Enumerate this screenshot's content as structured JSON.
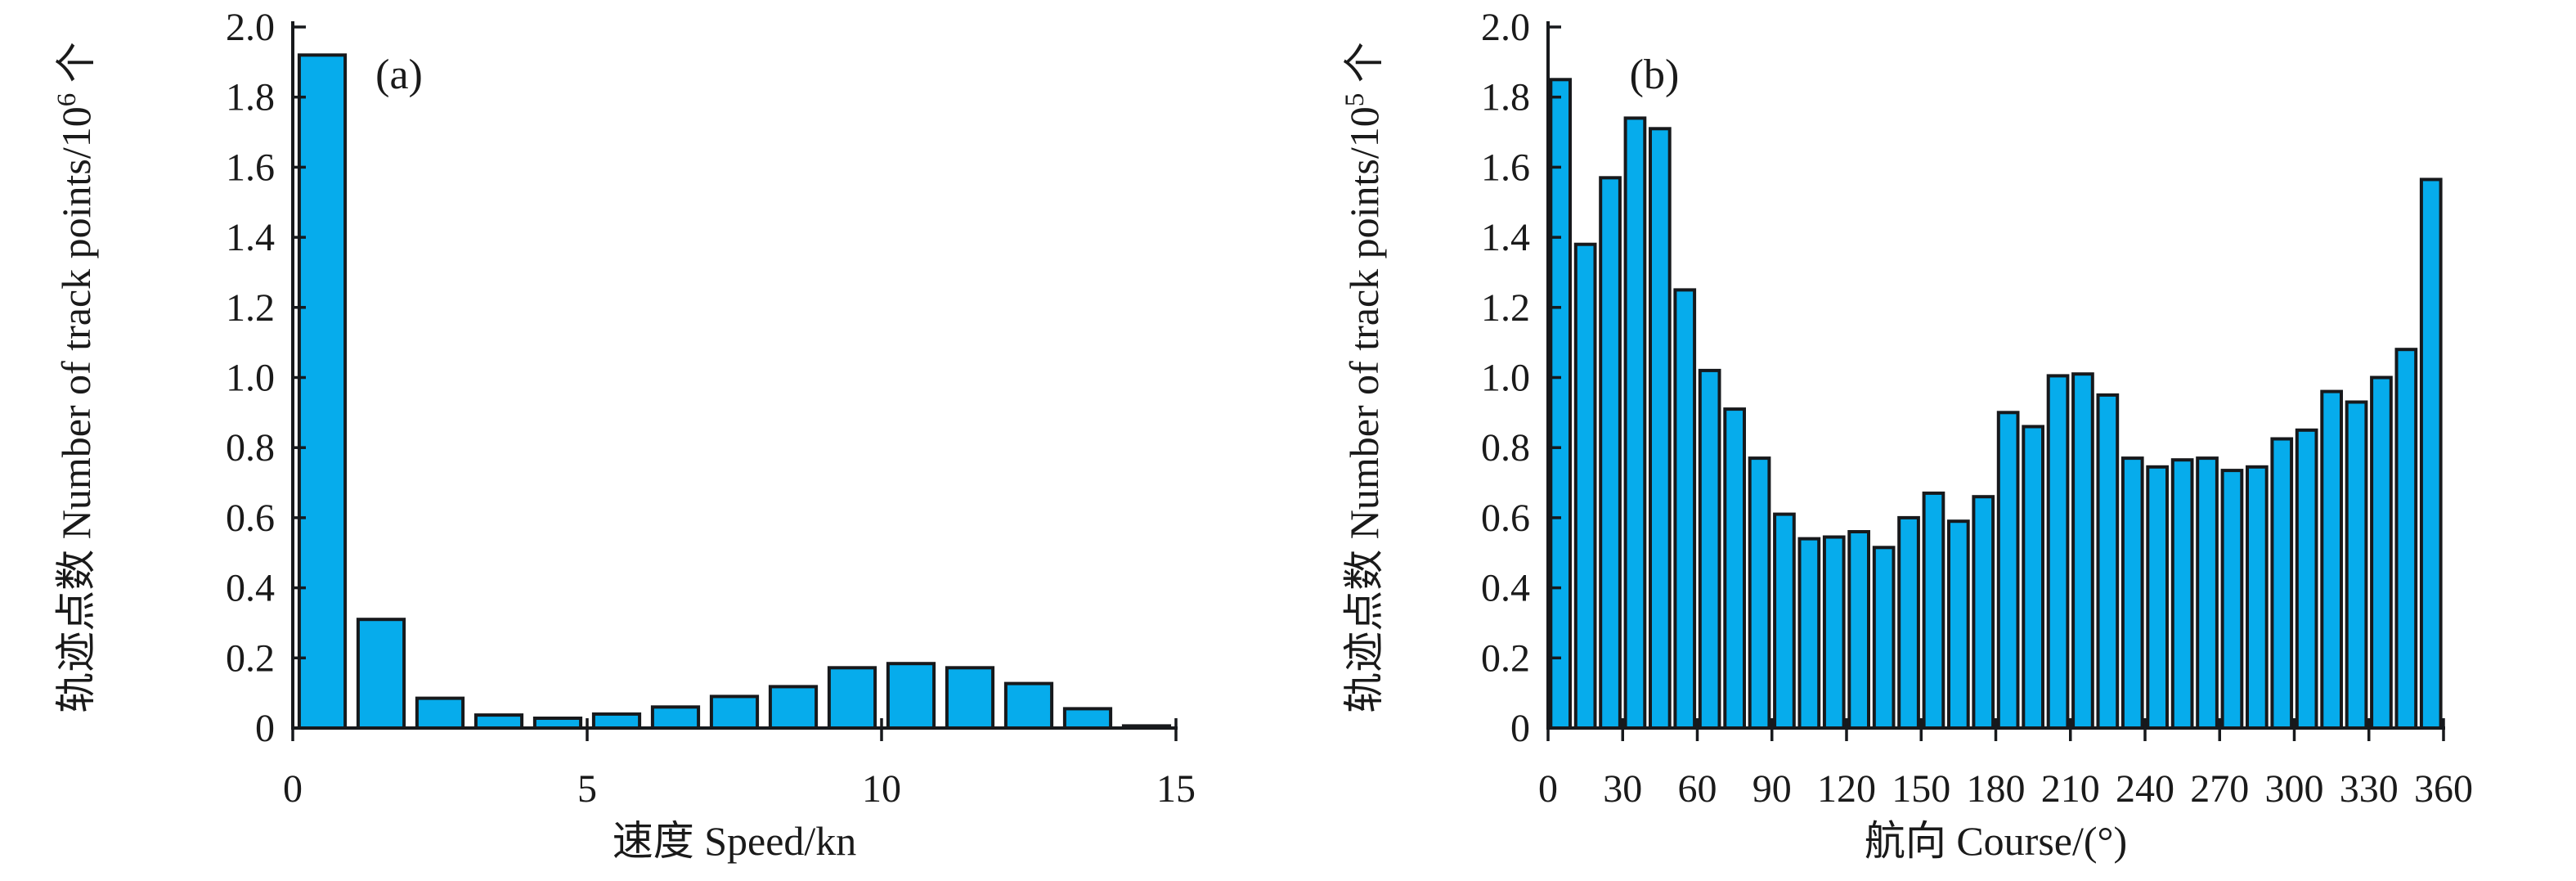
{
  "figure": {
    "background": "#ffffff",
    "bar_fill": "#06ACEC",
    "bar_stroke": "#17191C",
    "axis_color": "#17191C",
    "text_color": "#1a1a1a"
  },
  "chart_data": [
    {
      "id": "a",
      "type": "bar",
      "panel_label": "(a)",
      "xlabel": "速度  Speed/kn",
      "ylabel_prefix": "轨迹点数 Number of track points/10",
      "ylabel_superscript": "6",
      "ylabel_suffix": " 个",
      "x_start": 0,
      "bin_width": 1,
      "xlim": [
        0,
        15
      ],
      "ylim": [
        0,
        2.0
      ],
      "x_ticks": [
        0,
        5,
        10,
        15
      ],
      "x_tick_labels": [
        "0",
        "5",
        "10",
        "15"
      ],
      "y_ticks": [
        0,
        0.2,
        0.4,
        0.6,
        0.8,
        1.0,
        1.2,
        1.4,
        1.6,
        1.8,
        2.0
      ],
      "y_tick_labels": [
        "0",
        "0.2",
        "0.4",
        "0.6",
        "0.8",
        "1.0",
        "1.2",
        "1.4",
        "1.6",
        "1.8",
        "2.0"
      ],
      "values": [
        1.92,
        0.31,
        0.085,
        0.037,
        0.028,
        0.04,
        0.06,
        0.09,
        0.118,
        0.172,
        0.184,
        0.172,
        0.127,
        0.055,
        0.006
      ],
      "grid": false,
      "legend": null
    },
    {
      "id": "b",
      "type": "bar",
      "panel_label": "(b)",
      "xlabel": "航向 Course/(°)",
      "ylabel_prefix": "轨迹点数 Number of track points/10",
      "ylabel_superscript": "5",
      "ylabel_suffix": " 个",
      "x_start": 0,
      "bin_width": 10,
      "xlim": [
        0,
        360
      ],
      "ylim": [
        0,
        2.0
      ],
      "x_ticks": [
        0,
        30,
        60,
        90,
        120,
        150,
        180,
        210,
        240,
        270,
        300,
        330,
        360
      ],
      "x_tick_labels": [
        "0",
        "30",
        "60",
        "90",
        "120",
        "150",
        "180",
        "210",
        "240",
        "270",
        "300",
        "330",
        "360"
      ],
      "y_ticks": [
        0,
        0.2,
        0.4,
        0.6,
        0.8,
        1.0,
        1.2,
        1.4,
        1.6,
        1.8,
        2.0
      ],
      "y_tick_labels": [
        "0",
        "0.2",
        "0.4",
        "0.6",
        "0.8",
        "1.0",
        "1.2",
        "1.4",
        "1.6",
        "1.8",
        "2.0"
      ],
      "values": [
        1.85,
        1.38,
        1.57,
        1.74,
        1.71,
        1.25,
        1.02,
        0.91,
        0.77,
        0.61,
        0.54,
        0.545,
        0.56,
        0.515,
        0.6,
        0.67,
        0.59,
        0.66,
        0.9,
        0.86,
        1.005,
        1.01,
        0.95,
        0.77,
        0.745,
        0.765,
        0.77,
        0.735,
        0.745,
        0.825,
        0.85,
        0.96,
        0.93,
        1.0,
        1.08,
        1.565
      ],
      "grid": false,
      "legend": null
    }
  ]
}
